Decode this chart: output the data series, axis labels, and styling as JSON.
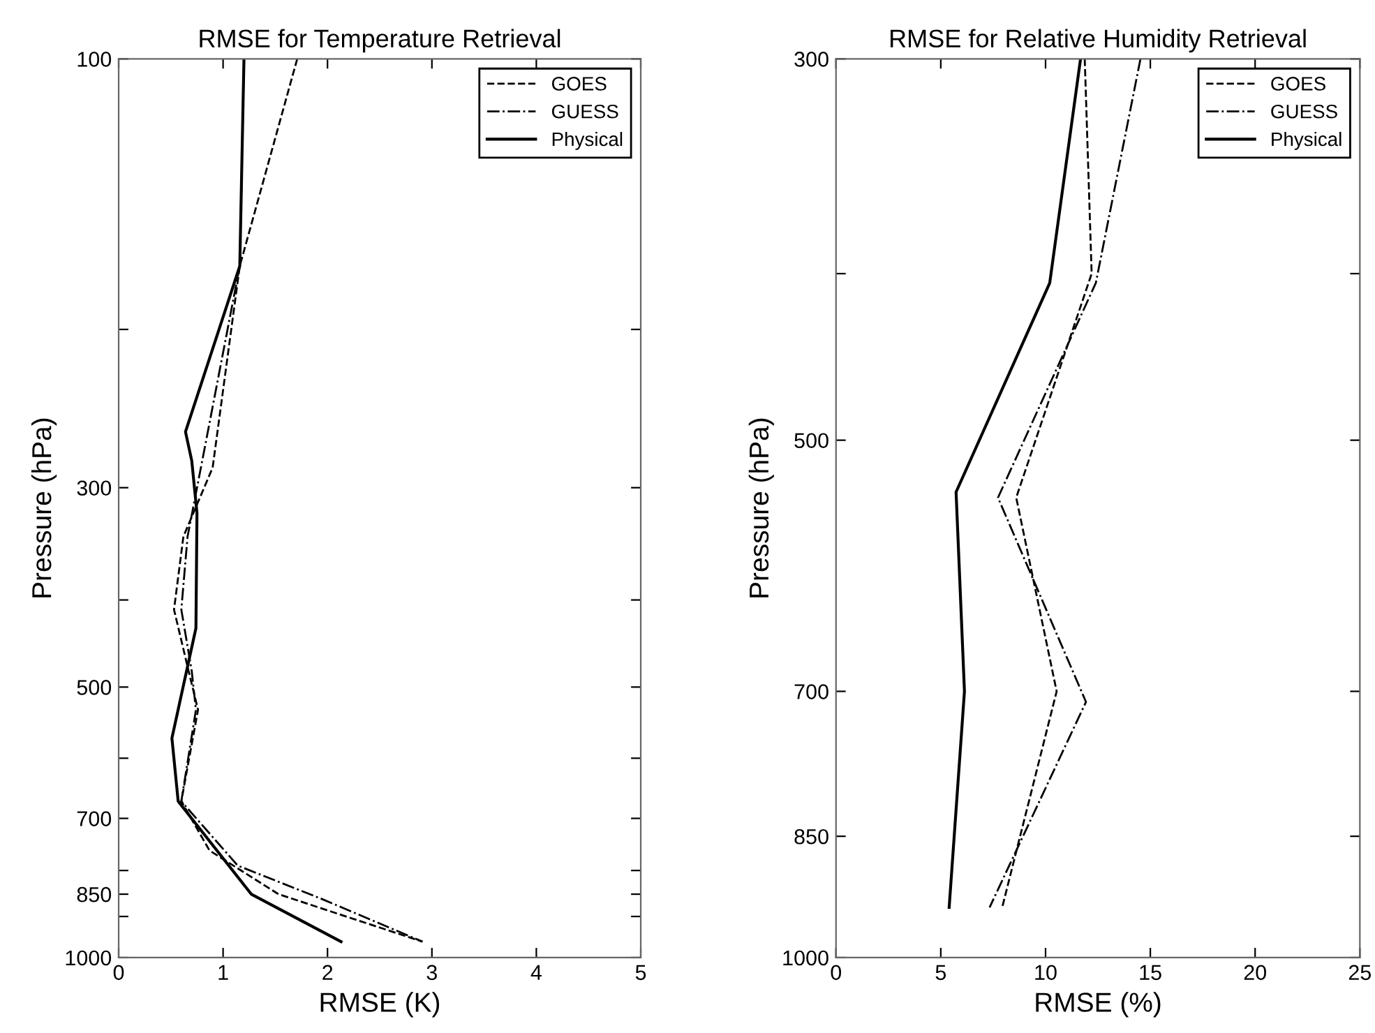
{
  "chart_data": [
    {
      "type": "line",
      "title": "RMSE for Temperature Retrieval",
      "xlabel": "RMSE (K)",
      "ylabel": "Pressure (hPa)",
      "log": "y",
      "legend": "top right",
      "marker": "none",
      "xlim": [
        0,
        5
      ],
      "xticks": [
        0,
        1,
        2,
        3,
        4,
        5
      ],
      "ylim": [
        1000,
        100
      ],
      "yticks": [
        100,
        {
          "value": 200,
          "label": null
        },
        300,
        {
          "value": 400,
          "label": null
        },
        500,
        {
          "value": 600,
          "label": null
        },
        700,
        {
          "value": 800,
          "label": null
        },
        850,
        {
          "value": 900,
          "label": null
        },
        1000
      ],
      "series": [
        {
          "name": "GOES",
          "color": "#000000",
          "line_style": "dashed",
          "x": [
            1.71,
            1.16,
            0.9,
            0.62,
            0.53,
            0.67,
            0.76,
            0.6,
            0.87,
            1.53,
            2.91
          ],
          "values": [
            100,
            170,
            285,
            340,
            410,
            480,
            530,
            670,
            760,
            850,
            960
          ]
        },
        {
          "name": "GUESS",
          "color": "#000000",
          "line_style": "dashdot",
          "x": [
            1.2,
            1.16,
            0.84,
            0.66,
            0.6,
            0.7,
            0.74,
            0.6,
            1.14,
            1.94,
            2.91
          ],
          "values": [
            100,
            170,
            265,
            340,
            410,
            480,
            530,
            670,
            790,
            860,
            960
          ]
        },
        {
          "name": "Physical",
          "color": "#000000",
          "line_style": "solid",
          "x": [
            1.2,
            1.16,
            0.64,
            0.7,
            0.75,
            0.74,
            0.51,
            0.57,
            1.27,
            2.13
          ],
          "values": [
            100,
            170,
            260,
            280,
            320,
            430,
            570,
            670,
            850,
            960
          ]
        }
      ]
    },
    {
      "type": "line",
      "title": "RMSE for Relative Humidity Retrieval",
      "xlabel": "RMSE (%)",
      "ylabel": "Pressure (hPa)",
      "log": "y",
      "legend": "top right",
      "marker": "none",
      "xlim": [
        0,
        25
      ],
      "xticks": [
        0,
        5,
        10,
        15,
        20,
        25
      ],
      "ylim": [
        1000,
        300
      ],
      "yticks": [
        300,
        {
          "value": 400,
          "label": null
        },
        500,
        700,
        850,
        1000
      ],
      "series": [
        {
          "name": "GOES",
          "color": "#000000",
          "line_style": "dashed",
          "x": [
            11.87,
            12.2,
            8.6,
            10.53,
            7.93
          ],
          "values": [
            300,
            400,
            540,
            700,
            935
          ]
        },
        {
          "name": "GUESS",
          "color": "#000000",
          "line_style": "dashdot",
          "x": [
            14.53,
            12.4,
            7.73,
            11.93,
            7.33
          ],
          "values": [
            300,
            405,
            540,
            710,
            935
          ]
        },
        {
          "name": "Physical",
          "color": "#000000",
          "line_style": "solid",
          "x": [
            11.67,
            10.2,
            5.73,
            6.13,
            5.4
          ],
          "values": [
            300,
            405,
            536,
            700,
            935
          ]
        }
      ]
    }
  ]
}
